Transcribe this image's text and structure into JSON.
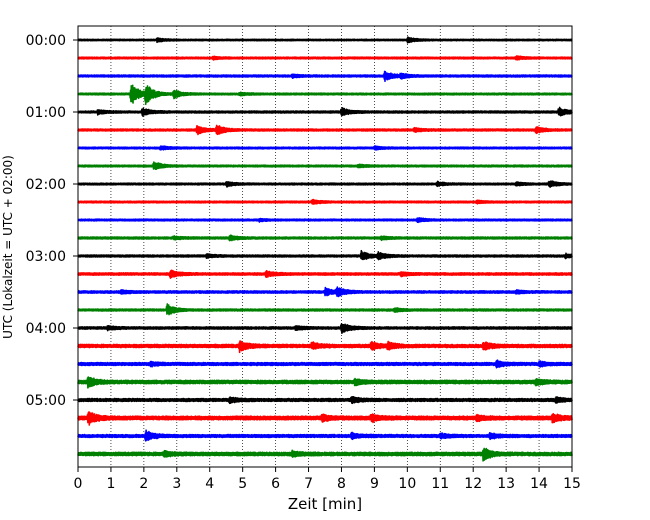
{
  "chart_data": {
    "type": "line",
    "subtype": "helicorder",
    "title": "",
    "xlabel": "Zeit  [min]",
    "ylabel": "UTC (Lokalzeit = UTC + 02:00)",
    "xlim": [
      0,
      15
    ],
    "x_ticks": [
      0,
      1,
      2,
      3,
      4,
      5,
      6,
      7,
      8,
      9,
      10,
      11,
      12,
      13,
      14,
      15
    ],
    "x_tick_labels": [
      "0",
      "1",
      "2",
      "3",
      "4",
      "5",
      "6",
      "7",
      "8",
      "9",
      "10",
      "11",
      "12",
      "13",
      "14",
      "15"
    ],
    "vertical_grid": "dotted at each minute",
    "line_minutes": 15,
    "trace_colors": [
      "#000000",
      "#ff0000",
      "#0000ff",
      "#008000"
    ],
    "y_tick_labels": [
      "00:00",
      "01:00",
      "02:00",
      "03:00",
      "04:00",
      "05:00"
    ],
    "traces": [
      {
        "start": "00:00",
        "color": "#000000",
        "noise": 0.25,
        "events": [
          {
            "t": 2.4,
            "amp": 0.6
          },
          {
            "t": 10.0,
            "amp": 0.9
          }
        ]
      },
      {
        "start": "00:15",
        "color": "#ff0000",
        "noise": 0.3,
        "events": [
          {
            "t": 13.3,
            "amp": 0.6
          },
          {
            "t": 4.1,
            "amp": 0.4
          }
        ]
      },
      {
        "start": "00:30",
        "color": "#0000ff",
        "noise": 0.35,
        "events": [
          {
            "t": 9.3,
            "amp": 1.6
          },
          {
            "t": 9.8,
            "amp": 0.8
          },
          {
            "t": 6.5,
            "amp": 0.5
          }
        ]
      },
      {
        "start": "00:45",
        "color": "#008000",
        "noise": 0.3,
        "events": [
          {
            "t": 1.6,
            "amp": 3.8
          },
          {
            "t": 2.05,
            "amp": 3.2
          },
          {
            "t": 2.9,
            "amp": 1.4
          },
          {
            "t": 4.9,
            "amp": 0.5
          }
        ]
      },
      {
        "start": "01:00",
        "color": "#000000",
        "noise": 0.35,
        "events": [
          {
            "t": 1.95,
            "amp": 1.3
          },
          {
            "t": 8.0,
            "amp": 1.2
          },
          {
            "t": 14.6,
            "amp": 1.4
          },
          {
            "t": 0.6,
            "amp": 0.7
          }
        ]
      },
      {
        "start": "01:15",
        "color": "#ff0000",
        "noise": 0.35,
        "events": [
          {
            "t": 3.6,
            "amp": 1.4
          },
          {
            "t": 4.2,
            "amp": 1.6
          },
          {
            "t": 10.2,
            "amp": 0.6
          },
          {
            "t": 13.9,
            "amp": 1.0
          }
        ]
      },
      {
        "start": "01:30",
        "color": "#0000ff",
        "noise": 0.3,
        "events": [
          {
            "t": 2.5,
            "amp": 0.6
          },
          {
            "t": 9.0,
            "amp": 0.5
          }
        ]
      },
      {
        "start": "01:45",
        "color": "#008000",
        "noise": 0.3,
        "events": [
          {
            "t": 2.3,
            "amp": 1.4
          },
          {
            "t": 8.5,
            "amp": 0.5
          }
        ]
      },
      {
        "start": "02:00",
        "color": "#000000",
        "noise": 0.3,
        "events": [
          {
            "t": 4.5,
            "amp": 0.8
          },
          {
            "t": 10.9,
            "amp": 0.7
          },
          {
            "t": 14.3,
            "amp": 1.1
          },
          {
            "t": 13.3,
            "amp": 0.6
          }
        ]
      },
      {
        "start": "02:15",
        "color": "#ff0000",
        "noise": 0.3,
        "events": [
          {
            "t": 7.1,
            "amp": 0.7
          },
          {
            "t": 12.1,
            "amp": 0.5
          }
        ]
      },
      {
        "start": "02:30",
        "color": "#0000ff",
        "noise": 0.3,
        "events": [
          {
            "t": 10.3,
            "amp": 0.7
          },
          {
            "t": 5.5,
            "amp": 0.4
          }
        ]
      },
      {
        "start": "02:45",
        "color": "#008000",
        "noise": 0.35,
        "events": [
          {
            "t": 4.6,
            "amp": 0.8
          },
          {
            "t": 2.9,
            "amp": 0.5
          },
          {
            "t": 9.2,
            "amp": 0.5
          }
        ]
      },
      {
        "start": "03:00",
        "color": "#000000",
        "noise": 0.35,
        "events": [
          {
            "t": 8.6,
            "amp": 1.5
          },
          {
            "t": 9.1,
            "amp": 1.1
          },
          {
            "t": 3.9,
            "amp": 0.6
          },
          {
            "t": 14.8,
            "amp": 0.6
          }
        ]
      },
      {
        "start": "03:15",
        "color": "#ff0000",
        "noise": 0.4,
        "events": [
          {
            "t": 2.8,
            "amp": 1.3
          },
          {
            "t": 5.7,
            "amp": 1.0
          },
          {
            "t": 9.8,
            "amp": 0.6
          }
        ]
      },
      {
        "start": "03:30",
        "color": "#0000ff",
        "noise": 0.4,
        "events": [
          {
            "t": 7.5,
            "amp": 1.2
          },
          {
            "t": 7.85,
            "amp": 1.4
          },
          {
            "t": 1.3,
            "amp": 0.5
          },
          {
            "t": 13.3,
            "amp": 0.5
          }
        ]
      },
      {
        "start": "03:45",
        "color": "#008000",
        "noise": 0.35,
        "events": [
          {
            "t": 2.7,
            "amp": 1.9
          },
          {
            "t": 9.6,
            "amp": 0.6
          }
        ]
      },
      {
        "start": "04:00",
        "color": "#000000",
        "noise": 0.4,
        "events": [
          {
            "t": 8.0,
            "amp": 1.6
          },
          {
            "t": 0.9,
            "amp": 0.6
          },
          {
            "t": 6.6,
            "amp": 0.6
          }
        ]
      },
      {
        "start": "04:15",
        "color": "#ff0000",
        "noise": 0.55,
        "events": [
          {
            "t": 4.9,
            "amp": 1.7
          },
          {
            "t": 7.1,
            "amp": 1.1
          },
          {
            "t": 8.9,
            "amp": 1.2
          },
          {
            "t": 9.4,
            "amp": 1.1
          },
          {
            "t": 12.3,
            "amp": 1.3
          }
        ]
      },
      {
        "start": "04:30",
        "color": "#0000ff",
        "noise": 0.5,
        "events": [
          {
            "t": 12.7,
            "amp": 1.0
          },
          {
            "t": 14.0,
            "amp": 0.7
          },
          {
            "t": 2.2,
            "amp": 0.6
          }
        ]
      },
      {
        "start": "04:45",
        "color": "#008000",
        "noise": 0.6,
        "events": [
          {
            "t": 0.3,
            "amp": 1.8
          },
          {
            "t": 8.4,
            "amp": 0.9
          },
          {
            "t": 13.9,
            "amp": 0.9
          }
        ]
      },
      {
        "start": "05:00",
        "color": "#000000",
        "noise": 0.5,
        "events": [
          {
            "t": 4.6,
            "amp": 0.8
          },
          {
            "t": 8.3,
            "amp": 0.9
          },
          {
            "t": 14.5,
            "amp": 0.9
          }
        ]
      },
      {
        "start": "05:15",
        "color": "#ff0000",
        "noise": 0.65,
        "events": [
          {
            "t": 0.3,
            "amp": 2.1
          },
          {
            "t": 7.4,
            "amp": 1.0
          },
          {
            "t": 8.9,
            "amp": 1.1
          },
          {
            "t": 14.4,
            "amp": 1.3
          },
          {
            "t": 12.1,
            "amp": 0.8
          }
        ]
      },
      {
        "start": "05:30",
        "color": "#0000ff",
        "noise": 0.5,
        "events": [
          {
            "t": 2.05,
            "amp": 1.7
          },
          {
            "t": 8.3,
            "amp": 0.8
          },
          {
            "t": 11.0,
            "amp": 0.7
          },
          {
            "t": 12.5,
            "amp": 0.9
          }
        ]
      },
      {
        "start": "05:45",
        "color": "#008000",
        "noise": 0.6,
        "events": [
          {
            "t": 12.3,
            "amp": 1.9
          },
          {
            "t": 2.6,
            "amp": 0.9
          },
          {
            "t": 6.5,
            "amp": 0.7
          }
        ]
      }
    ]
  }
}
